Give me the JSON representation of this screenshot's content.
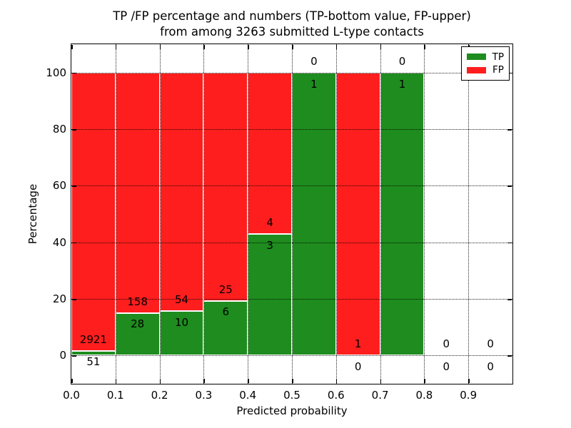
{
  "title": {
    "line1": "TP /FP percentage and numbers (TP-bottom value, FP-upper)",
    "line2": "from among 3263 submitted L-type contacts"
  },
  "chart_data": {
    "type": "bar",
    "stacked": true,
    "orientation": "vertical",
    "title": "TP /FP percentage and numbers (TP-bottom value, FP-upper) from among 3263 submitted L-type contacts",
    "xlabel": "Predicted probability",
    "ylabel": "Percentage",
    "xlim": [
      0.0,
      1.0
    ],
    "ylim": [
      -10,
      110
    ],
    "x_tick_values": [
      0.0,
      0.1,
      0.2,
      0.3,
      0.4,
      0.5,
      0.6,
      0.7,
      0.8,
      0.9
    ],
    "x_tick_labels": [
      "0.0",
      "0.1",
      "0.2",
      "0.3",
      "0.4",
      "0.5",
      "0.6",
      "0.7",
      "0.8",
      "0.9"
    ],
    "y_tick_values": [
      0,
      20,
      40,
      60,
      80,
      100
    ],
    "y_tick_labels": [
      "0",
      "20",
      "40",
      "60",
      "80",
      "100"
    ],
    "grid": {
      "style": "dotted",
      "color": "#000000",
      "on": true
    },
    "colors": {
      "tp": "#1E8C1E",
      "fp": "#FF1E1E",
      "bar_edge": "#FFFFFF"
    },
    "total_contacts": 3263,
    "label_offset_pct": 4,
    "legend": {
      "position": "upper-right",
      "entries": [
        {
          "label": "TP",
          "color": "#1E8C1E"
        },
        {
          "label": "FP",
          "color": "#FF1E1E"
        }
      ]
    },
    "bins": [
      {
        "x0": 0.0,
        "x1": 0.1,
        "tp": 51,
        "fp": 2921,
        "tp_pct": 1.716,
        "fp_pct": 98.284
      },
      {
        "x0": 0.1,
        "x1": 0.2,
        "tp": 28,
        "fp": 158,
        "tp_pct": 15.054,
        "fp_pct": 84.946
      },
      {
        "x0": 0.2,
        "x1": 0.3,
        "tp": 10,
        "fp": 54,
        "tp_pct": 15.625,
        "fp_pct": 84.375
      },
      {
        "x0": 0.3,
        "x1": 0.4,
        "tp": 6,
        "fp": 25,
        "tp_pct": 19.355,
        "fp_pct": 80.645
      },
      {
        "x0": 0.4,
        "x1": 0.5,
        "tp": 3,
        "fp": 4,
        "tp_pct": 42.857,
        "fp_pct": 57.143
      },
      {
        "x0": 0.5,
        "x1": 0.6,
        "tp": 1,
        "fp": 0,
        "tp_pct": 100,
        "fp_pct": 0
      },
      {
        "x0": 0.6,
        "x1": 0.7,
        "tp": 0,
        "fp": 1,
        "tp_pct": 0,
        "fp_pct": 100
      },
      {
        "x0": 0.7,
        "x1": 0.8,
        "tp": 1,
        "fp": 0,
        "tp_pct": 100,
        "fp_pct": 0
      },
      {
        "x0": 0.8,
        "x1": 0.9,
        "tp": 0,
        "fp": 0,
        "tp_pct": 0,
        "fp_pct": 0
      },
      {
        "x0": 0.9,
        "x1": 1.0,
        "tp": 0,
        "fp": 0,
        "tp_pct": 0,
        "fp_pct": 0
      }
    ]
  }
}
